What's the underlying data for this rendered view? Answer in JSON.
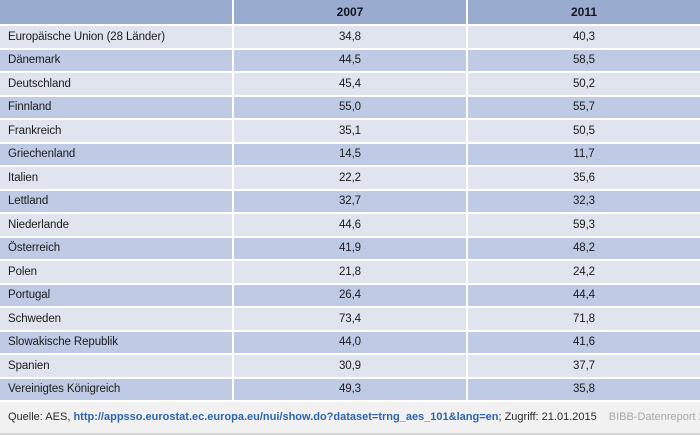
{
  "table": {
    "columns": [
      "",
      "2007",
      "2011"
    ],
    "rows": [
      {
        "label": "Europäische Union (28 Länder)",
        "v2007": "34,8",
        "v2011": "40,3"
      },
      {
        "label": "Dänemark",
        "v2007": "44,5",
        "v2011": "58,5"
      },
      {
        "label": "Deutschland",
        "v2007": "45,4",
        "v2011": "50,2"
      },
      {
        "label": "Finnland",
        "v2007": "55,0",
        "v2011": "55,7"
      },
      {
        "label": "Frankreich",
        "v2007": "35,1",
        "v2011": "50,5"
      },
      {
        "label": "Griechenland",
        "v2007": "14,5",
        "v2011": "11,7"
      },
      {
        "label": "Italien",
        "v2007": "22,2",
        "v2011": "35,6"
      },
      {
        "label": "Lettland",
        "v2007": "32,7",
        "v2011": "32,3"
      },
      {
        "label": "Niederlande",
        "v2007": "44,6",
        "v2011": "59,3"
      },
      {
        "label": "Österreich",
        "v2007": "41,9",
        "v2011": "48,2"
      },
      {
        "label": "Polen",
        "v2007": "21,8",
        "v2011": "24,2"
      },
      {
        "label": "Portugal",
        "v2007": "26,4",
        "v2011": "44,4"
      },
      {
        "label": "Schweden",
        "v2007": "73,4",
        "v2011": "71,8"
      },
      {
        "label": "Slowakische Republik",
        "v2007": "44,0",
        "v2011": "41,6"
      },
      {
        "label": "Spanien",
        "v2007": "30,9",
        "v2011": "37,7"
      },
      {
        "label": "Vereinigtes Königreich",
        "v2007": "49,3",
        "v2011": "35,8"
      }
    ]
  },
  "footer": {
    "source_prefix": "Quelle: AES, ",
    "source_link": "http://appsso.eurostat.ec.europa.eu/nui/show.do?dataset=trng_aes_101&lang=en",
    "source_suffix": "; Zugriff: 21.01.2015",
    "credit": "BIBB-Datenreport 2015"
  },
  "colors": {
    "header_bg": "#9aabd0",
    "row_dark": "#bfcbe4",
    "row_light": "#e0e4ef",
    "separator": "#ffffff",
    "footer_bg": "#f1f1f1",
    "footer_border": "#d6d6d6",
    "link": "#2e64ad",
    "credit_text": "#a9a9a9"
  },
  "chart_data": {
    "type": "table",
    "title": "",
    "categories": [
      "Europäische Union (28 Länder)",
      "Dänemark",
      "Deutschland",
      "Finnland",
      "Frankreich",
      "Griechenland",
      "Italien",
      "Lettland",
      "Niederlande",
      "Österreich",
      "Polen",
      "Portugal",
      "Schweden",
      "Slowakische Republik",
      "Spanien",
      "Vereinigtes Königreich"
    ],
    "series": [
      {
        "name": "2007",
        "values": [
          34.8,
          44.5,
          45.4,
          55.0,
          35.1,
          14.5,
          22.2,
          32.7,
          44.6,
          41.9,
          21.8,
          26.4,
          73.4,
          44.0,
          30.9,
          49.3
        ]
      },
      {
        "name": "2011",
        "values": [
          40.3,
          58.5,
          50.2,
          55.7,
          50.5,
          11.7,
          35.6,
          32.3,
          59.3,
          48.2,
          24.2,
          44.4,
          71.8,
          41.6,
          37.7,
          35.8
        ]
      }
    ],
    "value_format": "decimal-comma, one decimal place",
    "layout": "header row shaded #9aabd0; data rows alternate light/dark blue; white gridlines"
  }
}
